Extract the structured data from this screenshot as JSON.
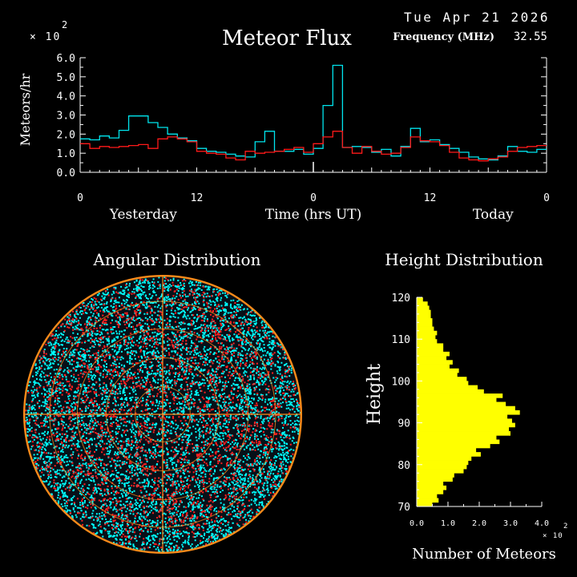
{
  "header": {
    "date": "Tue Apr 21 2026",
    "title": "Meteor Flux",
    "frequency_label": "Frequency (MHz)",
    "frequency_value": "32.55",
    "scale_exponent": "× 10",
    "scale_exponent_power": "2"
  },
  "colors": {
    "background": "#000000",
    "axes": "#ffffff",
    "series_cyan": "#00e5ee",
    "series_red": "#ff1a1a",
    "histogram": "#ffff00",
    "sky_grid": "#ff8c1a",
    "sky_points_cyan": "#00ffff",
    "sky_points_red": "#ff2020"
  },
  "chart_data": [
    {
      "type": "line",
      "title": "Meteor Flux",
      "ylabel": "Meteors/hr",
      "xlabel": "Time (hrs UT)",
      "y_scale_note": "× 10^2",
      "ylim": [
        0,
        6
      ],
      "xlim": [
        0,
        48
      ],
      "y_ticks": [
        "0.0",
        "1.0",
        "2.0",
        "3.0",
        "4.0",
        "5.0",
        "6.0"
      ],
      "x_ticks": [
        {
          "value": 0,
          "label": "0"
        },
        {
          "value": 12,
          "label": "12"
        },
        {
          "value": 24,
          "label": "0"
        },
        {
          "value": 36,
          "label": "12"
        },
        {
          "value": 48,
          "label": "0"
        }
      ],
      "x_group_labels": [
        {
          "value": 6.5,
          "label": "Yesterday"
        },
        {
          "value": 24,
          "label": "Time (hrs UT)"
        },
        {
          "value": 42.5,
          "label": "Today"
        }
      ],
      "step": true,
      "grid": false,
      "series": [
        {
          "color": "cyan",
          "values": [
            1.75,
            1.7,
            1.9,
            1.8,
            2.2,
            2.95,
            2.95,
            2.6,
            2.35,
            2.0,
            1.8,
            1.65,
            1.25,
            1.1,
            1.05,
            0.95,
            0.85,
            0.8,
            1.6,
            2.15,
            1.1,
            1.1,
            1.2,
            0.95,
            1.25,
            3.5,
            5.6,
            1.3,
            1.35,
            1.3,
            1.05,
            1.2,
            0.85,
            1.35,
            2.3,
            1.6,
            1.7,
            1.45,
            1.25,
            1.05,
            0.8,
            0.7,
            0.65,
            0.85,
            1.35,
            1.1,
            1.05,
            1.2
          ]
        },
        {
          "color": "red",
          "values": [
            1.5,
            1.25,
            1.35,
            1.3,
            1.35,
            1.4,
            1.45,
            1.25,
            1.75,
            1.85,
            1.75,
            1.6,
            1.1,
            1.0,
            0.95,
            0.75,
            0.65,
            1.1,
            1.0,
            1.05,
            1.1,
            1.2,
            1.3,
            1.05,
            1.5,
            1.85,
            2.15,
            1.3,
            1.0,
            1.35,
            1.1,
            0.95,
            1.0,
            1.3,
            1.85,
            1.65,
            1.6,
            1.4,
            1.05,
            0.75,
            0.65,
            0.6,
            0.7,
            0.8,
            1.1,
            1.3,
            1.35,
            1.4
          ]
        }
      ]
    },
    {
      "type": "scatter",
      "title": "Angular Distribution",
      "projection": "polar sky plot",
      "grid": true
    },
    {
      "type": "bar",
      "orientation": "horizontal",
      "title": "Height Distribution",
      "ylabel": "Height",
      "xlabel": "Number of Meteors",
      "x_scale_note": "× 10^2",
      "ylim": [
        70,
        120
      ],
      "xlim": [
        0,
        4
      ],
      "y_ticks": [
        "70",
        "80",
        "90",
        "100",
        "110",
        "120"
      ],
      "x_ticks": [
        "0.0",
        "1.0",
        "2.0",
        "3.0",
        "4.0"
      ],
      "bin_width": 1,
      "heights": [
        70,
        71,
        72,
        73,
        74,
        75,
        76,
        77,
        78,
        79,
        80,
        81,
        82,
        83,
        84,
        85,
        86,
        87,
        88,
        89,
        90,
        91,
        92,
        93,
        94,
        95,
        96,
        97,
        98,
        99,
        100,
        101,
        102,
        103,
        104,
        105,
        106,
        107,
        108,
        109,
        110,
        111,
        112,
        113,
        114,
        115,
        116,
        117,
        118,
        119
      ],
      "values": [
        0.5,
        0.7,
        0.65,
        0.85,
        0.95,
        0.85,
        1.15,
        1.2,
        1.5,
        1.6,
        1.65,
        1.75,
        2.05,
        1.9,
        2.35,
        2.65,
        2.55,
        3.0,
        2.95,
        3.15,
        3.05,
        2.9,
        3.3,
        3.15,
        2.85,
        2.55,
        2.75,
        2.15,
        1.95,
        1.65,
        1.6,
        1.3,
        1.35,
        1.05,
        1.15,
        0.95,
        1.05,
        0.85,
        0.85,
        0.65,
        0.6,
        0.65,
        0.55,
        0.5,
        0.5,
        0.45,
        0.45,
        0.4,
        0.35,
        0.2
      ]
    }
  ]
}
